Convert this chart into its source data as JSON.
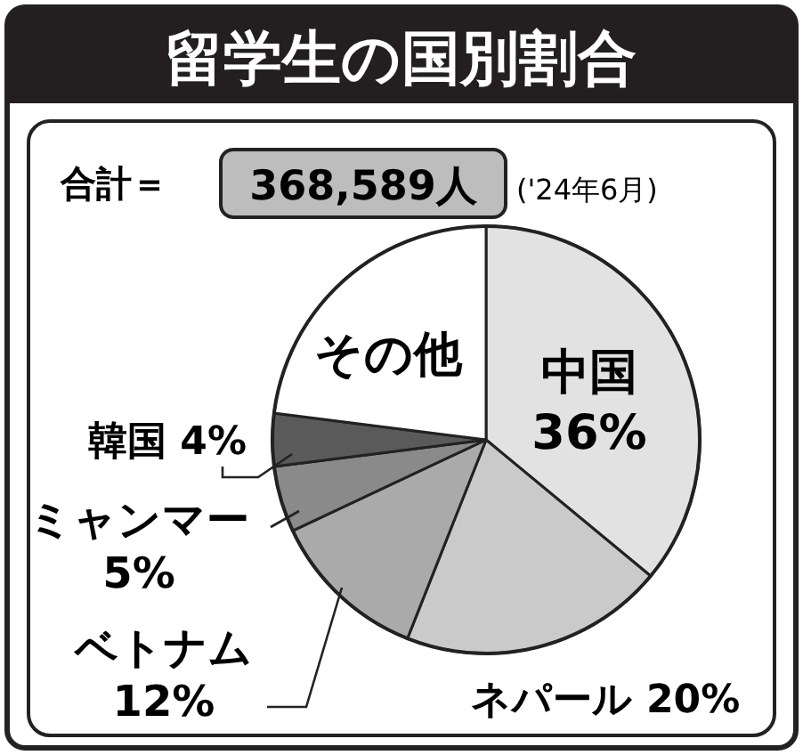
{
  "chart_data": {
    "type": "pie",
    "title": "留学生の国別割合",
    "categories": [
      "中国",
      "ネパール",
      "ベトナム",
      "ミャンマー",
      "韓国",
      "その他"
    ],
    "values": [
      36,
      20,
      12,
      5,
      4,
      23
    ],
    "value_labels": [
      "36%",
      "20%",
      "12%",
      "5%",
      "4%",
      null
    ],
    "colors": [
      "#e2e2e2",
      "#cacaca",
      "#aaaaaa",
      "#8a8a8a",
      "#5a5a5a",
      "#ffffff"
    ],
    "annotations": [
      "合計＝",
      "368,589人",
      "('24年6月)"
    ]
  }
}
